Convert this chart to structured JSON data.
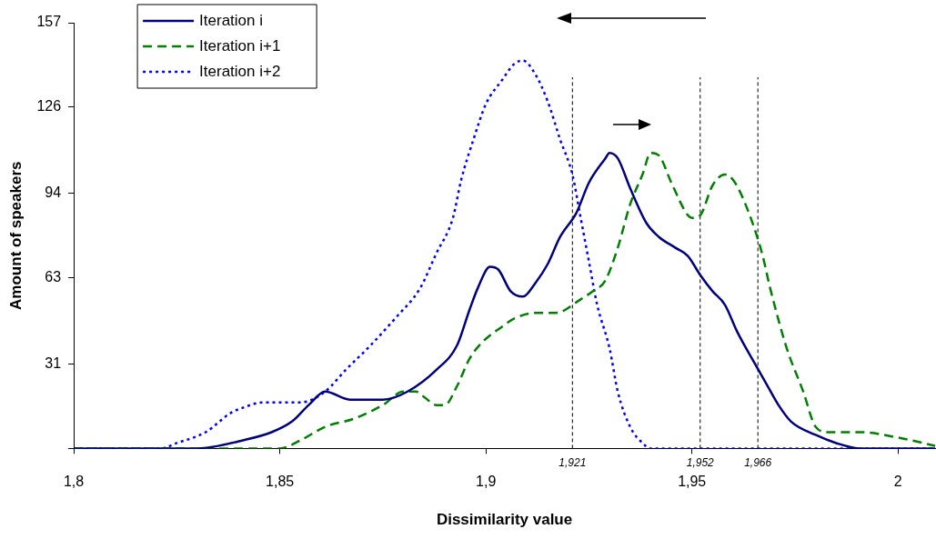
{
  "chart_data": {
    "type": "line",
    "xlabel": "Dissimilarity value",
    "ylabel": "Amount of speakers",
    "xlim": [
      1.8,
      2.009
    ],
    "ylim": [
      0,
      157
    ],
    "xticks": [
      {
        "value": 1.8,
        "label": "1,8"
      },
      {
        "value": 1.85,
        "label": "1,85"
      },
      {
        "value": 1.9,
        "label": "1,9"
      },
      {
        "value": 1.95,
        "label": "1,95"
      },
      {
        "value": 2,
        "label": "2"
      }
    ],
    "yticks": [
      {
        "value": 0,
        "label": null
      },
      31,
      63,
      94,
      126,
      157
    ],
    "grid": false,
    "legend": "top left",
    "marker": "none",
    "series": [
      {
        "name": "Iteration i",
        "color": "#000080",
        "line_style": "solid",
        "x": [
          1.8,
          1.83,
          1.841,
          1.848,
          1.853,
          1.857,
          1.861,
          1.867,
          1.875,
          1.881,
          1.888,
          1.893,
          1.896,
          1.898,
          1.901,
          1.903,
          1.906,
          1.909,
          1.912,
          1.915,
          1.918,
          1.922,
          1.925,
          1.929,
          1.93,
          1.932,
          1.935,
          1.939,
          1.942,
          1.946,
          1.949,
          1.952,
          1.955,
          1.958,
          1.961,
          1.965,
          1.968,
          1.971,
          1.974,
          1.98,
          1.985,
          1.991,
          2.009
        ],
        "values": [
          0,
          0,
          3,
          6,
          10,
          16,
          21,
          18,
          18,
          21,
          29,
          38,
          51,
          59,
          67,
          66,
          58,
          56,
          61,
          68,
          78,
          87,
          98,
          107,
          109,
          107,
          96,
          83,
          78,
          74,
          71,
          64,
          58,
          53,
          43,
          32,
          24,
          16,
          10,
          5,
          2,
          0,
          0
        ]
      },
      {
        "name": "Iteration i+1",
        "color": "#008000",
        "line_style": "dashed",
        "x": [
          1.8,
          1.85,
          1.855,
          1.861,
          1.868,
          1.875,
          1.88,
          1.883,
          1.885,
          1.888,
          1.89,
          1.893,
          1.896,
          1.899,
          1.904,
          1.907,
          1.912,
          1.917,
          1.923,
          1.926,
          1.929,
          1.932,
          1.935,
          1.938,
          1.94,
          1.942,
          1.945,
          1.949,
          1.95,
          1.952,
          1.955,
          1.958,
          1.96,
          1.963,
          1.967,
          1.969,
          1.973,
          1.977,
          1.98,
          1.983,
          1.991,
          2,
          2.009
        ],
        "values": [
          0,
          0,
          3,
          8,
          11,
          16,
          21,
          21,
          19,
          16,
          16,
          23,
          33,
          39,
          45,
          48,
          50,
          50,
          55,
          58,
          62,
          74,
          90,
          101,
          109,
          108,
          98,
          86,
          85,
          86,
          97,
          101,
          99,
          90,
          72,
          59,
          37,
          21,
          8,
          6,
          6,
          4,
          1
        ]
      },
      {
        "name": "Iteration i+2",
        "color": "#0000ff",
        "line_style": "dotted",
        "x": [
          1.8,
          1.821,
          1.825,
          1.832,
          1.838,
          1.841,
          1.846,
          1.855,
          1.861,
          1.866,
          1.872,
          1.878,
          1.884,
          1.888,
          1.892,
          1.894,
          1.897,
          1.9,
          1.904,
          1.907,
          1.909,
          1.912,
          1.915,
          1.918,
          1.921,
          1.923,
          1.925,
          1.927,
          1.93,
          1.932,
          1.935,
          1.938,
          1.94,
          2.009
        ],
        "values": [
          0,
          0,
          2,
          6,
          13,
          15,
          17,
          17,
          21,
          29,
          38,
          48,
          59,
          72,
          85,
          99,
          114,
          127,
          136,
          142,
          143,
          138,
          128,
          114,
          101,
          85,
          69,
          53,
          37,
          21,
          8,
          2,
          0,
          0
        ]
      }
    ],
    "ref_lines": [
      {
        "axis": "x",
        "value": 1.921,
        "label": "1,921",
        "color": "#000000",
        "line_style": "dashed"
      },
      {
        "axis": "x",
        "value": 1.952,
        "label": "1,952",
        "color": "#000000",
        "line_style": "dashed"
      },
      {
        "axis": "x",
        "value": 1.966,
        "label": "1,966",
        "color": "#000000",
        "line_style": "dashed"
      }
    ]
  }
}
